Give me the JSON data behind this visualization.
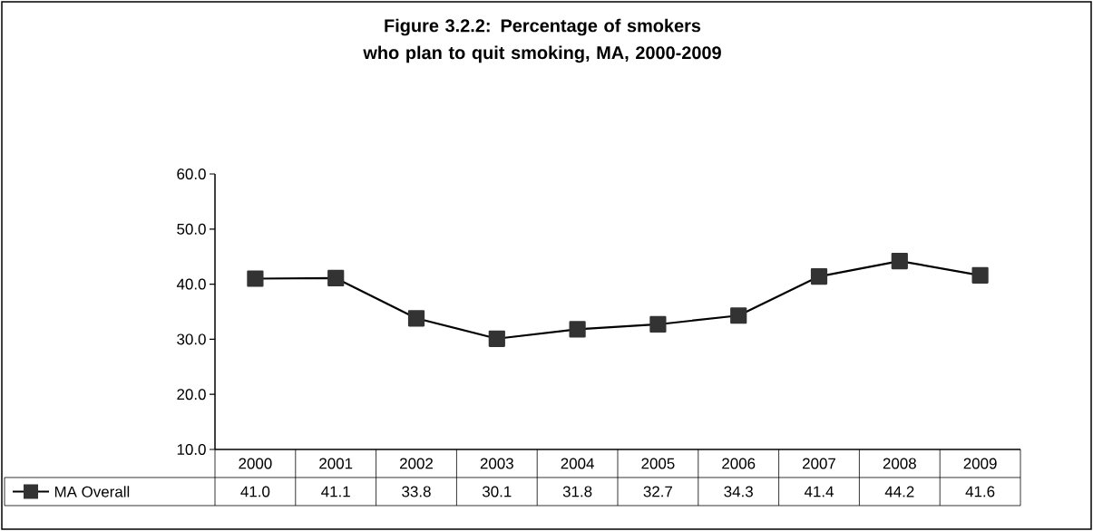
{
  "chart_data": {
    "type": "line",
    "title": "Figure 3.2.2: Percentage of smokers who plan to quit smoking, MA, 2000-2009",
    "categories": [
      "2000",
      "2001",
      "2002",
      "2003",
      "2004",
      "2005",
      "2006",
      "2007",
      "2008",
      "2009"
    ],
    "series": [
      {
        "name": "MA Overall",
        "color": "#333333",
        "values": [
          41.0,
          41.1,
          33.8,
          30.1,
          31.8,
          32.7,
          34.3,
          41.4,
          44.2,
          41.6
        ],
        "value_labels": [
          "41.0",
          "41.1",
          "33.8",
          "30.1",
          "31.8",
          "32.7",
          "34.3",
          "41.4",
          "44.2",
          "41.6"
        ]
      }
    ],
    "ylim": [
      10,
      60
    ],
    "yticks": [
      {
        "value": 10,
        "label": "10.0"
      },
      {
        "value": 20,
        "label": "20.0"
      },
      {
        "value": 30,
        "label": "30.0"
      },
      {
        "value": 40,
        "label": "40.0"
      },
      {
        "value": 50,
        "label": "50.0"
      },
      {
        "value": 60,
        "label": "60.0"
      }
    ],
    "marker": "square",
    "line_style": "solid",
    "legend": "bottom",
    "grid": false
  }
}
